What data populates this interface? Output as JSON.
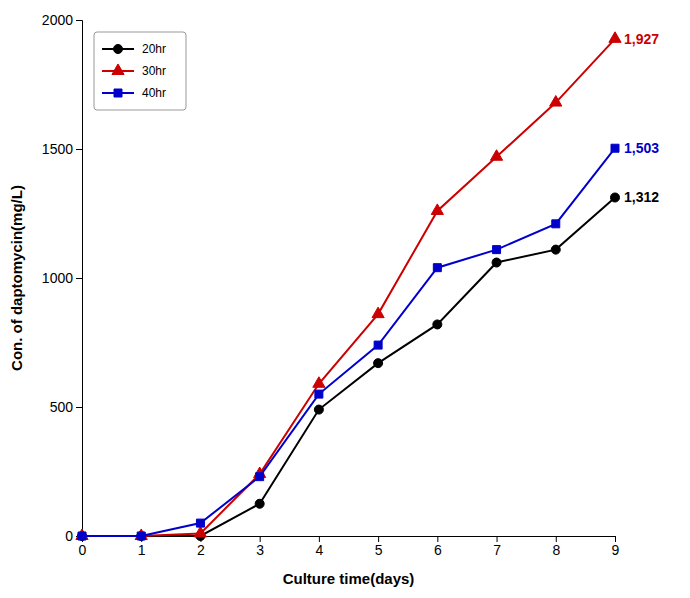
{
  "chart_data": {
    "type": "line",
    "x": [
      0,
      1,
      2,
      3,
      4,
      5,
      6,
      7,
      8,
      9
    ],
    "series": [
      {
        "name": "20hr",
        "color": "#000000",
        "marker": "circle",
        "values": [
          0,
          0,
          0,
          125,
          490,
          670,
          820,
          1060,
          1110,
          1312
        ]
      },
      {
        "name": "30hr",
        "color": "#cc0000",
        "marker": "triangle",
        "values": [
          0,
          0,
          10,
          240,
          590,
          860,
          1260,
          1470,
          1680,
          1927
        ]
      },
      {
        "name": "40hr",
        "color": "#0000cc",
        "marker": "square",
        "values": [
          0,
          0,
          50,
          230,
          550,
          740,
          1040,
          1110,
          1210,
          1503
        ]
      }
    ],
    "xlabel": "Culture time(days)",
    "ylabel": "Con. of daptomycin(mg/L)",
    "xlim": [
      0,
      9.0
    ],
    "ylim": [
      0,
      2000
    ],
    "xticks": [
      0,
      1,
      2,
      3,
      4,
      5,
      6,
      7,
      8,
      9
    ],
    "yticks": [
      0,
      500,
      1000,
      1500,
      2000
    ],
    "grid": false,
    "legend": "upper left",
    "annotations": [
      {
        "text": "1,927",
        "x": 9,
        "y": 1927,
        "color": "#cc0000"
      },
      {
        "text": "1,503",
        "x": 9,
        "y": 1503,
        "color": "#0000cc"
      },
      {
        "text": "1,312",
        "x": 9,
        "y": 1312,
        "color": "#000000"
      }
    ]
  }
}
